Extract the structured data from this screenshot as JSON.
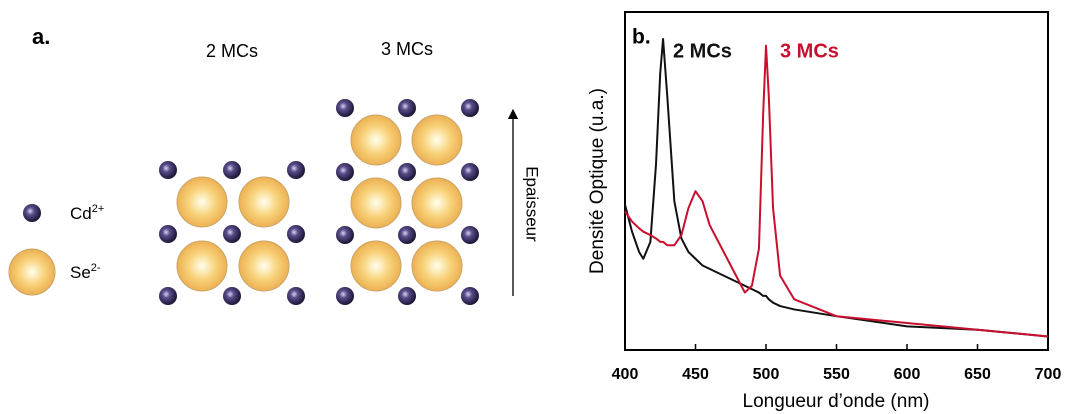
{
  "panel_a": {
    "label": "a.",
    "titles": [
      "2 MCs",
      "3 MCs"
    ],
    "legend": [
      {
        "ion": "Cd",
        "charge": "2+"
      },
      {
        "ion": "Se",
        "charge": "2-"
      }
    ],
    "arrow_label": "Epaisseur"
  },
  "chart_data": {
    "type": "line",
    "panel_label": "b.",
    "x_label": "Longueur d’onde (nm)",
    "y_label": "Densité Optique (u.a.)",
    "x": [
      400,
      405,
      410,
      413,
      418,
      422,
      425,
      427,
      430,
      435,
      440,
      445,
      450,
      455,
      460,
      470,
      480,
      485,
      490,
      495,
      498,
      500,
      502,
      505,
      510,
      520,
      550,
      600,
      650,
      700
    ],
    "series": [
      {
        "name": "2 MCs",
        "color": "#111111",
        "values": [
          0.43,
          0.35,
          0.29,
          0.27,
          0.32,
          0.55,
          0.82,
          0.92,
          0.75,
          0.44,
          0.33,
          0.29,
          0.27,
          0.25,
          0.24,
          0.22,
          0.2,
          0.19,
          0.18,
          0.17,
          0.16,
          0.16,
          0.15,
          0.14,
          0.13,
          0.12,
          0.1,
          0.07,
          0.06,
          0.04
        ]
      },
      {
        "name": "3 MCs",
        "color": "#c8102e",
        "values": [
          0.41,
          0.38,
          0.36,
          0.35,
          0.34,
          0.33,
          0.32,
          0.32,
          0.31,
          0.31,
          0.34,
          0.42,
          0.47,
          0.44,
          0.37,
          0.29,
          0.21,
          0.17,
          0.19,
          0.3,
          0.7,
          0.9,
          0.75,
          0.42,
          0.22,
          0.15,
          0.1,
          0.08,
          0.06,
          0.04
        ]
      }
    ],
    "xlim": [
      400,
      700
    ],
    "xticks": [
      400,
      450,
      500,
      550,
      600,
      650,
      700
    ],
    "ylim": [
      0,
      1
    ]
  }
}
